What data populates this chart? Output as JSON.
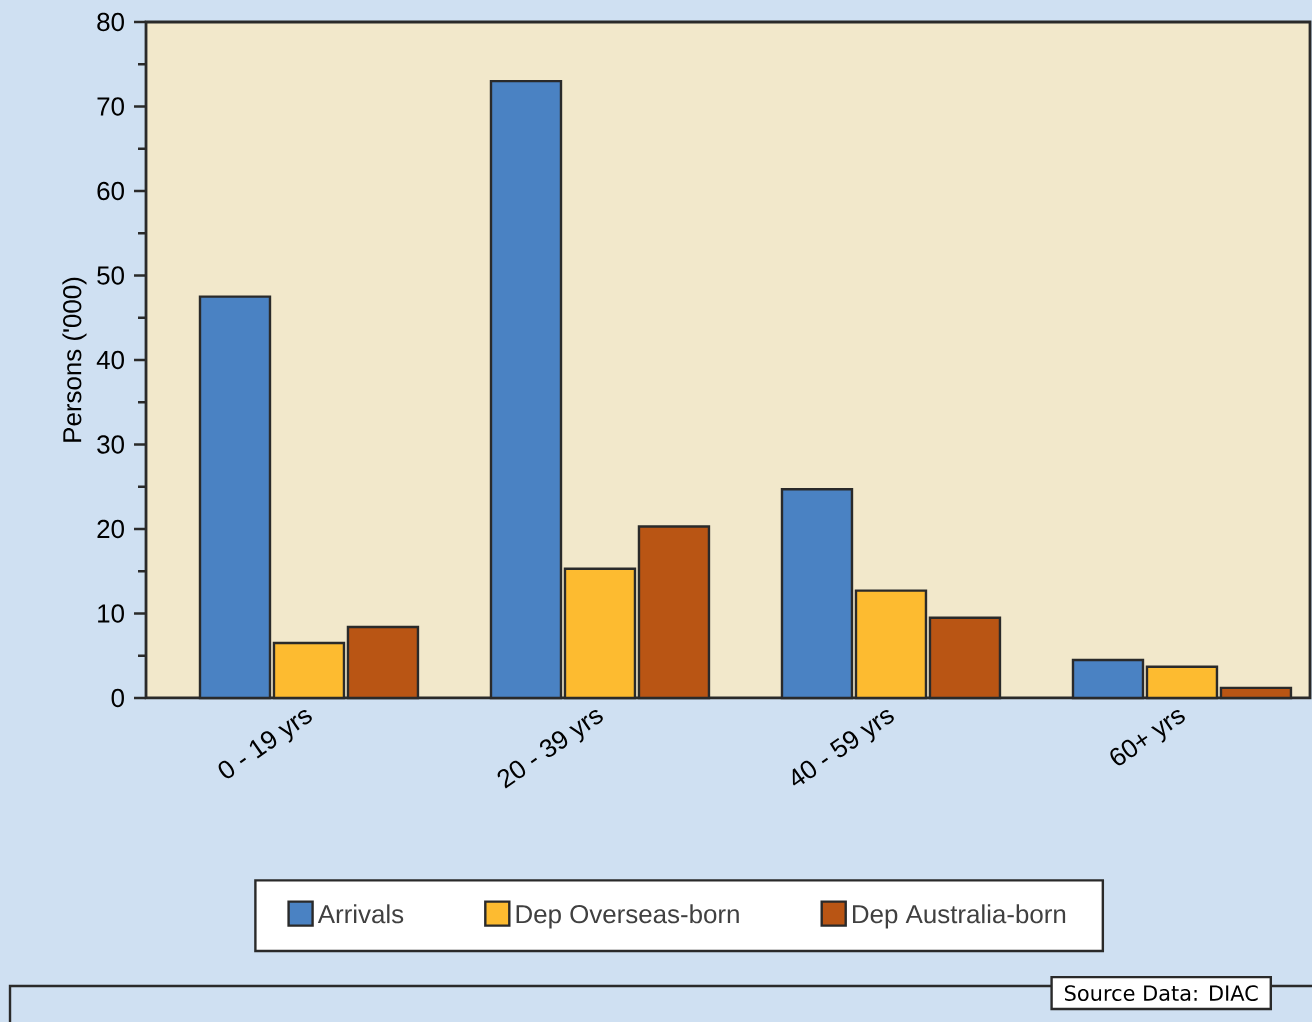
{
  "chart_data": {
    "type": "bar",
    "categories": [
      "0 - 19 yrs",
      "20 - 39 yrs",
      "40 - 59 yrs",
      "60+ yrs"
    ],
    "series": [
      {
        "name": "Arrivals",
        "color": "#4a82c3",
        "values": [
          47.5,
          73,
          24.7,
          4.5
        ]
      },
      {
        "name": "Dep Overseas-born",
        "color": "#fdbb30",
        "values": [
          6.5,
          15.3,
          12.7,
          3.7
        ]
      },
      {
        "name": "Dep Australia-born",
        "color": "#b95514",
        "values": [
          8.4,
          20.3,
          9.5,
          1.2
        ]
      }
    ],
    "ylabel": "Persons ('000)",
    "ylim": [
      0,
      80
    ],
    "yticks": [
      0,
      10,
      20,
      30,
      40,
      50,
      60,
      70,
      80
    ],
    "grid": false,
    "legend": "bottom",
    "annotations": [
      "Source Data: DIAC"
    ]
  }
}
